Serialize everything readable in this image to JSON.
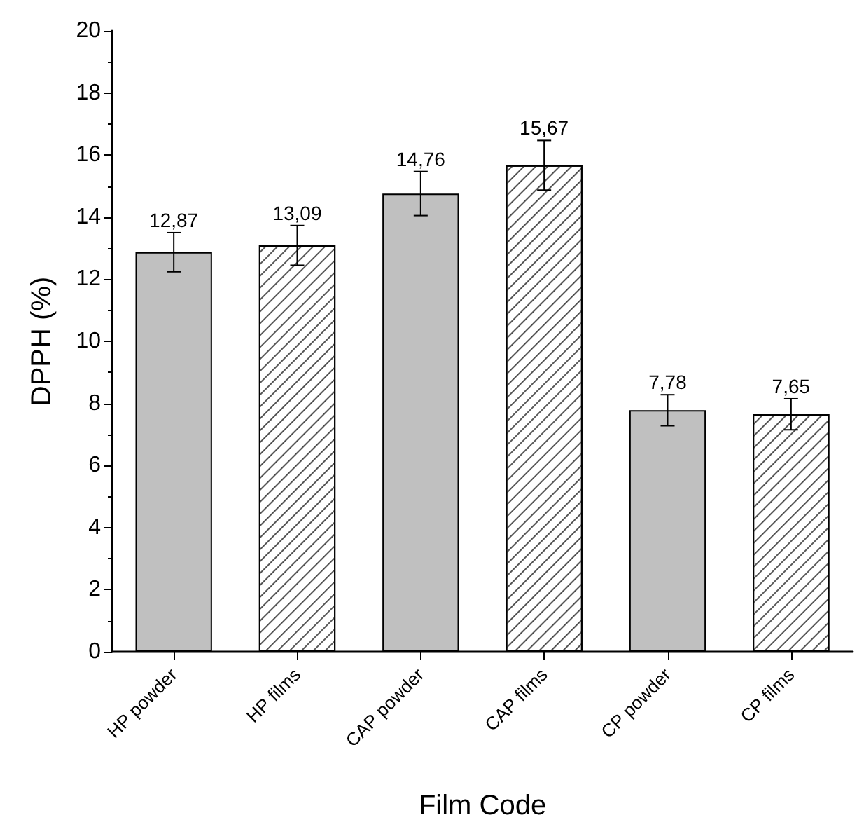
{
  "chart_data": {
    "type": "bar",
    "xlabel": "Film Code",
    "ylabel": "DPPH (%)",
    "categories": [
      "HP powder",
      "HP films",
      "CAP powder",
      "CAP films",
      "CP powder",
      "CP films"
    ],
    "values": [
      12.87,
      13.09,
      14.76,
      15.67,
      7.78,
      7.65
    ],
    "colors": [
      "#c0c0c0",
      "#ffffff",
      "#c0c0c0",
      "#ffffff",
      "#c0c0c0",
      "#ffffff"
    ],
    "errors": [
      0.63,
      0.64,
      0.71,
      0.8,
      0.5,
      0.5
    ],
    "value_labels": [
      "12,87",
      "13,09",
      "14,76",
      "15,67",
      "7,78",
      "7,65"
    ],
    "ylim": [
      0,
      20
    ],
    "yticks": [
      0,
      2,
      4,
      6,
      8,
      10,
      12,
      14,
      16,
      18,
      20
    ],
    "grid": false
  }
}
